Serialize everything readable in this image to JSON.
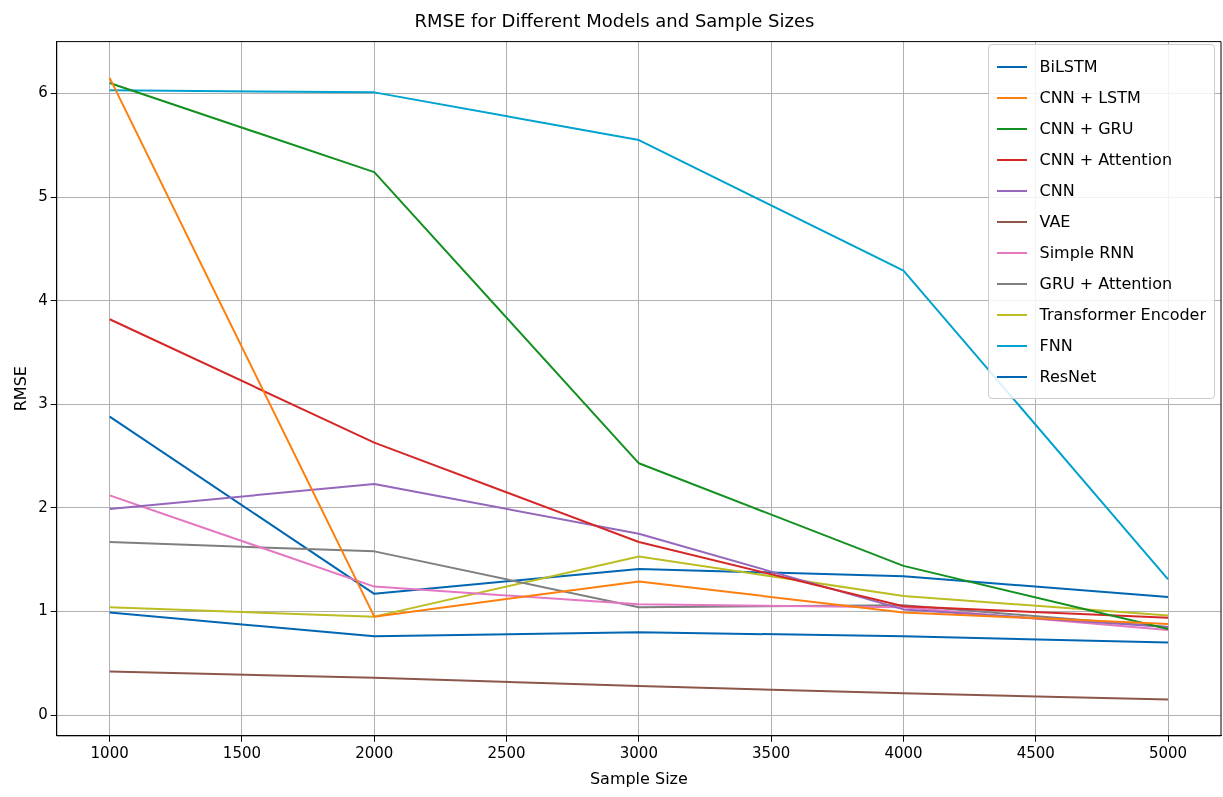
{
  "chart_data": {
    "type": "line",
    "title": "RMSE for Different Models and Sample Sizes",
    "xlabel": "Sample Size",
    "ylabel": "RMSE",
    "x": [
      1000,
      2000,
      3000,
      4000,
      5000
    ],
    "xlim": [
      800,
      5200
    ],
    "xticks": [
      1000,
      1500,
      2000,
      2500,
      3000,
      3500,
      4000,
      4500,
      5000
    ],
    "ylim": [
      -0.2,
      6.5
    ],
    "yticks": [
      0,
      1,
      2,
      3,
      4,
      5,
      6
    ],
    "grid": true,
    "legend": "top right",
    "line_style": "solid",
    "marker": "none",
    "series": [
      {
        "name": "BiLSTM",
        "color": "#0066b2",
        "values": [
          0.99,
          0.76,
          0.8,
          0.76,
          0.7
        ]
      },
      {
        "name": "CNN + LSTM",
        "color": "#ff7f0e",
        "values": [
          6.15,
          0.95,
          1.29,
          0.99,
          0.88
        ]
      },
      {
        "name": "CNN + GRU",
        "color": "#139020",
        "values": [
          6.1,
          5.24,
          2.43,
          1.44,
          0.83
        ]
      },
      {
        "name": "CNN + Attention",
        "color": "#d62728",
        "values": [
          3.82,
          2.63,
          1.67,
          1.05,
          0.94
        ]
      },
      {
        "name": "CNN",
        "color": "#9467bd",
        "values": [
          1.99,
          2.23,
          1.75,
          1.02,
          0.85
        ]
      },
      {
        "name": "VAE",
        "color": "#8c564b",
        "values": [
          0.42,
          0.36,
          0.28,
          0.21,
          0.15
        ]
      },
      {
        "name": "Simple RNN",
        "color": "#e377c2",
        "values": [
          2.12,
          1.24,
          1.07,
          1.04,
          0.82
        ]
      },
      {
        "name": "GRU + Attention",
        "color": "#7f7f7f",
        "values": [
          1.67,
          1.58,
          1.04,
          1.06,
          0.85
        ]
      },
      {
        "name": "Transformer Encoder",
        "color": "#bcbd22",
        "values": [
          1.04,
          0.95,
          1.53,
          1.15,
          0.96
        ]
      },
      {
        "name": "FNN",
        "color": "#00a2d0",
        "values": [
          6.03,
          6.01,
          5.55,
          4.29,
          1.31
        ]
      },
      {
        "name": "ResNet",
        "color": "#0066b2",
        "values": [
          2.88,
          1.17,
          1.41,
          1.34,
          1.14
        ]
      }
    ]
  }
}
